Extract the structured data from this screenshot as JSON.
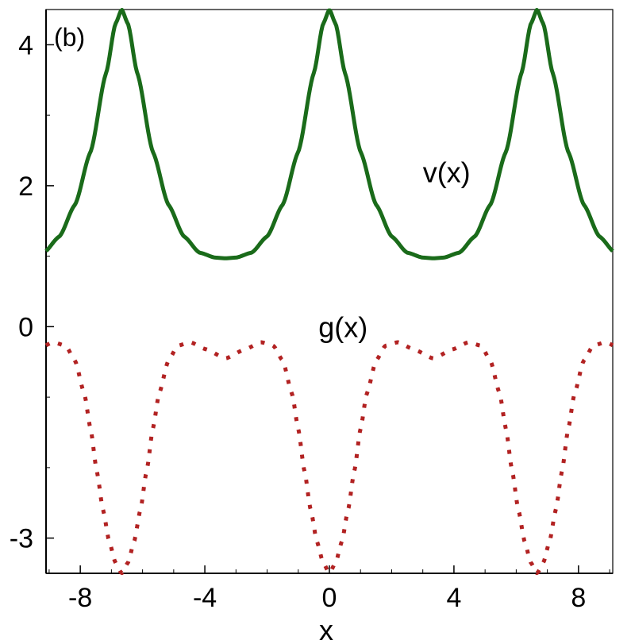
{
  "chart_data": {
    "type": "line",
    "panel_label": "(b)",
    "xlabel": "x",
    "ylabel": "",
    "xlim": [
      -9.1,
      9.1
    ],
    "ylim": [
      -3.5,
      4.5
    ],
    "x_ticks": [
      -8,
      -4,
      0,
      4,
      8
    ],
    "x_tick_labels": [
      "-8",
      "-4",
      "0",
      "4",
      "8"
    ],
    "y_ticks": [
      -3,
      0,
      2,
      4
    ],
    "y_tick_labels": [
      "-3",
      "0",
      "2",
      "4"
    ],
    "grid": false,
    "period": 6.67,
    "series": [
      {
        "name": "v(x)",
        "style": "solid",
        "color": "#1a6b1a",
        "label_at": [
          3.0,
          2.05
        ],
        "x": [
          -3.33,
          -3.0,
          -2.5,
          -2.0,
          -1.5,
          -1.0,
          -0.5,
          -0.2,
          0.0
        ],
        "y": [
          0.97,
          0.98,
          1.05,
          1.28,
          1.73,
          2.48,
          3.6,
          4.3,
          4.5
        ]
      },
      {
        "name": "g(x)",
        "style": "dotted",
        "color": "#b22222",
        "label_at": [
          -0.35,
          -0.15
        ],
        "x": [
          -3.33,
          -2.7,
          -2.2,
          -1.8,
          -1.5,
          -1.2,
          -1.0,
          -0.8,
          -0.6,
          -0.4,
          -0.2,
          0.0
        ],
        "y": [
          -0.45,
          -0.32,
          -0.22,
          -0.27,
          -0.48,
          -0.95,
          -1.45,
          -2.05,
          -2.6,
          -3.05,
          -3.35,
          -3.5
        ]
      }
    ]
  }
}
